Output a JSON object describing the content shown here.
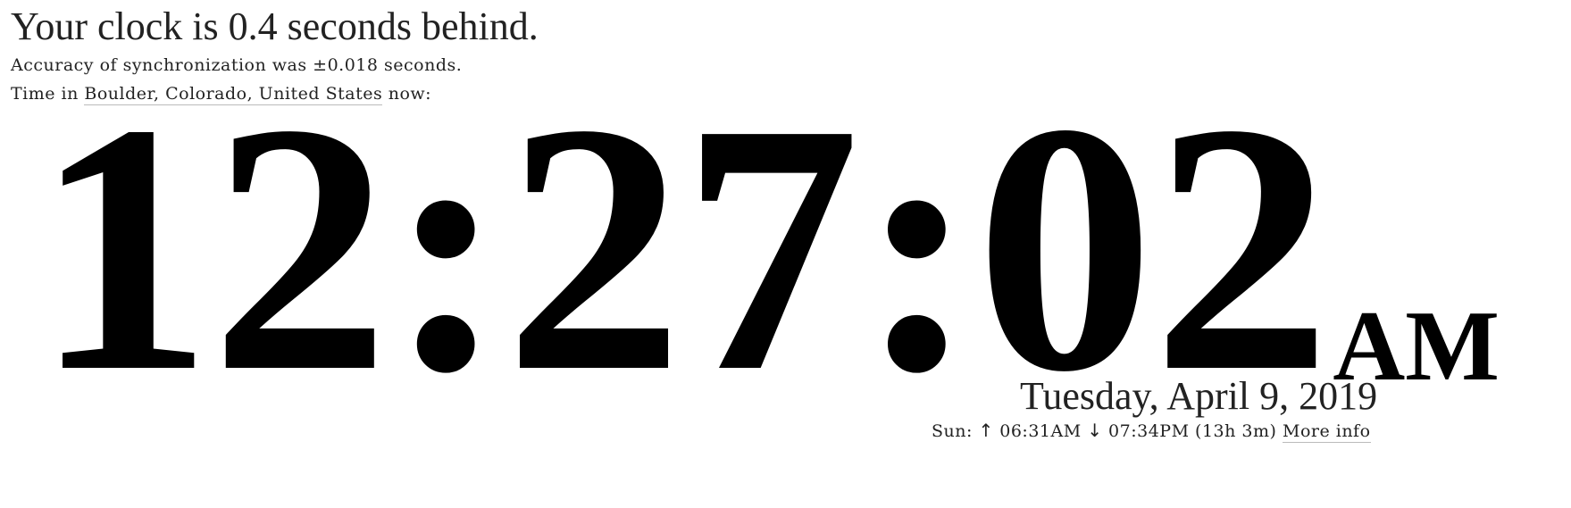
{
  "status": {
    "title": "Your clock is 0.4 seconds behind.",
    "accuracy": "Accuracy of synchronization was ±0.018 seconds."
  },
  "location": {
    "prefix": "Time in ",
    "place": "Boulder, Colorado, United States",
    "suffix": " now:"
  },
  "clock": {
    "time": "12:27:02",
    "ampm": "AM"
  },
  "date": {
    "text": "Tuesday, April 9, 2019"
  },
  "sun": {
    "label": "Sun: ",
    "rise_icon": "↑",
    "rise": " 06:31AM ",
    "set_icon": "↓",
    "set": " 07:34PM (13h 3m) ",
    "more_info": "More info"
  }
}
